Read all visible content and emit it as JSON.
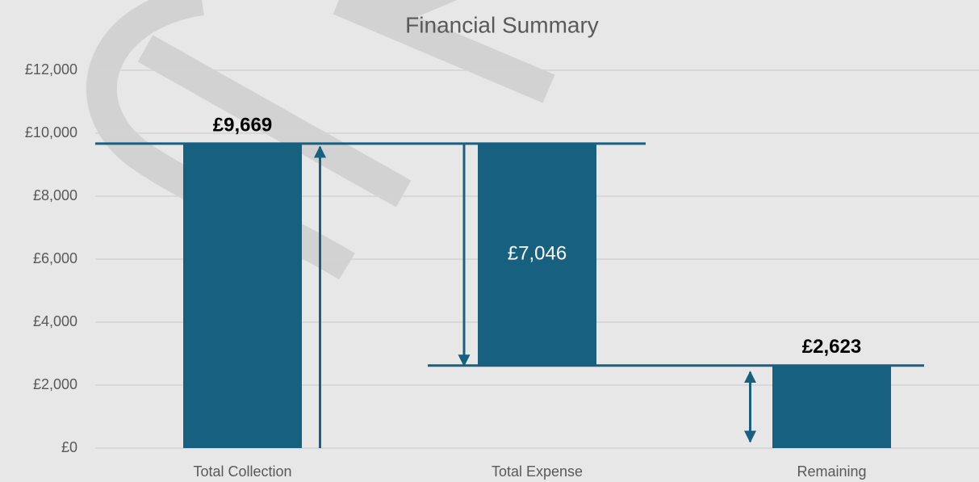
{
  "chart_data": {
    "type": "waterfall",
    "title": "Financial Summary",
    "categories": [
      "Total Collection",
      "Total Expense",
      "Remaining"
    ],
    "values": [
      9669,
      7046,
      2623
    ],
    "value_labels": [
      "£9,669",
      "£7,046",
      "£2,623"
    ],
    "measures": [
      "total",
      "decrease",
      "total"
    ],
    "color": "#17607f",
    "ylim": [
      0,
      12000
    ],
    "yticks": [
      {
        "value": 0,
        "label": "£0"
      },
      {
        "value": 2000,
        "label": "£2,000"
      },
      {
        "value": 4000,
        "label": "£4,000"
      },
      {
        "value": 6000,
        "label": "£6,000"
      },
      {
        "value": 8000,
        "label": "£8,000"
      },
      {
        "value": 10000,
        "label": "£10,000"
      },
      {
        "value": 12000,
        "label": "£12,000"
      }
    ],
    "grid": true
  }
}
